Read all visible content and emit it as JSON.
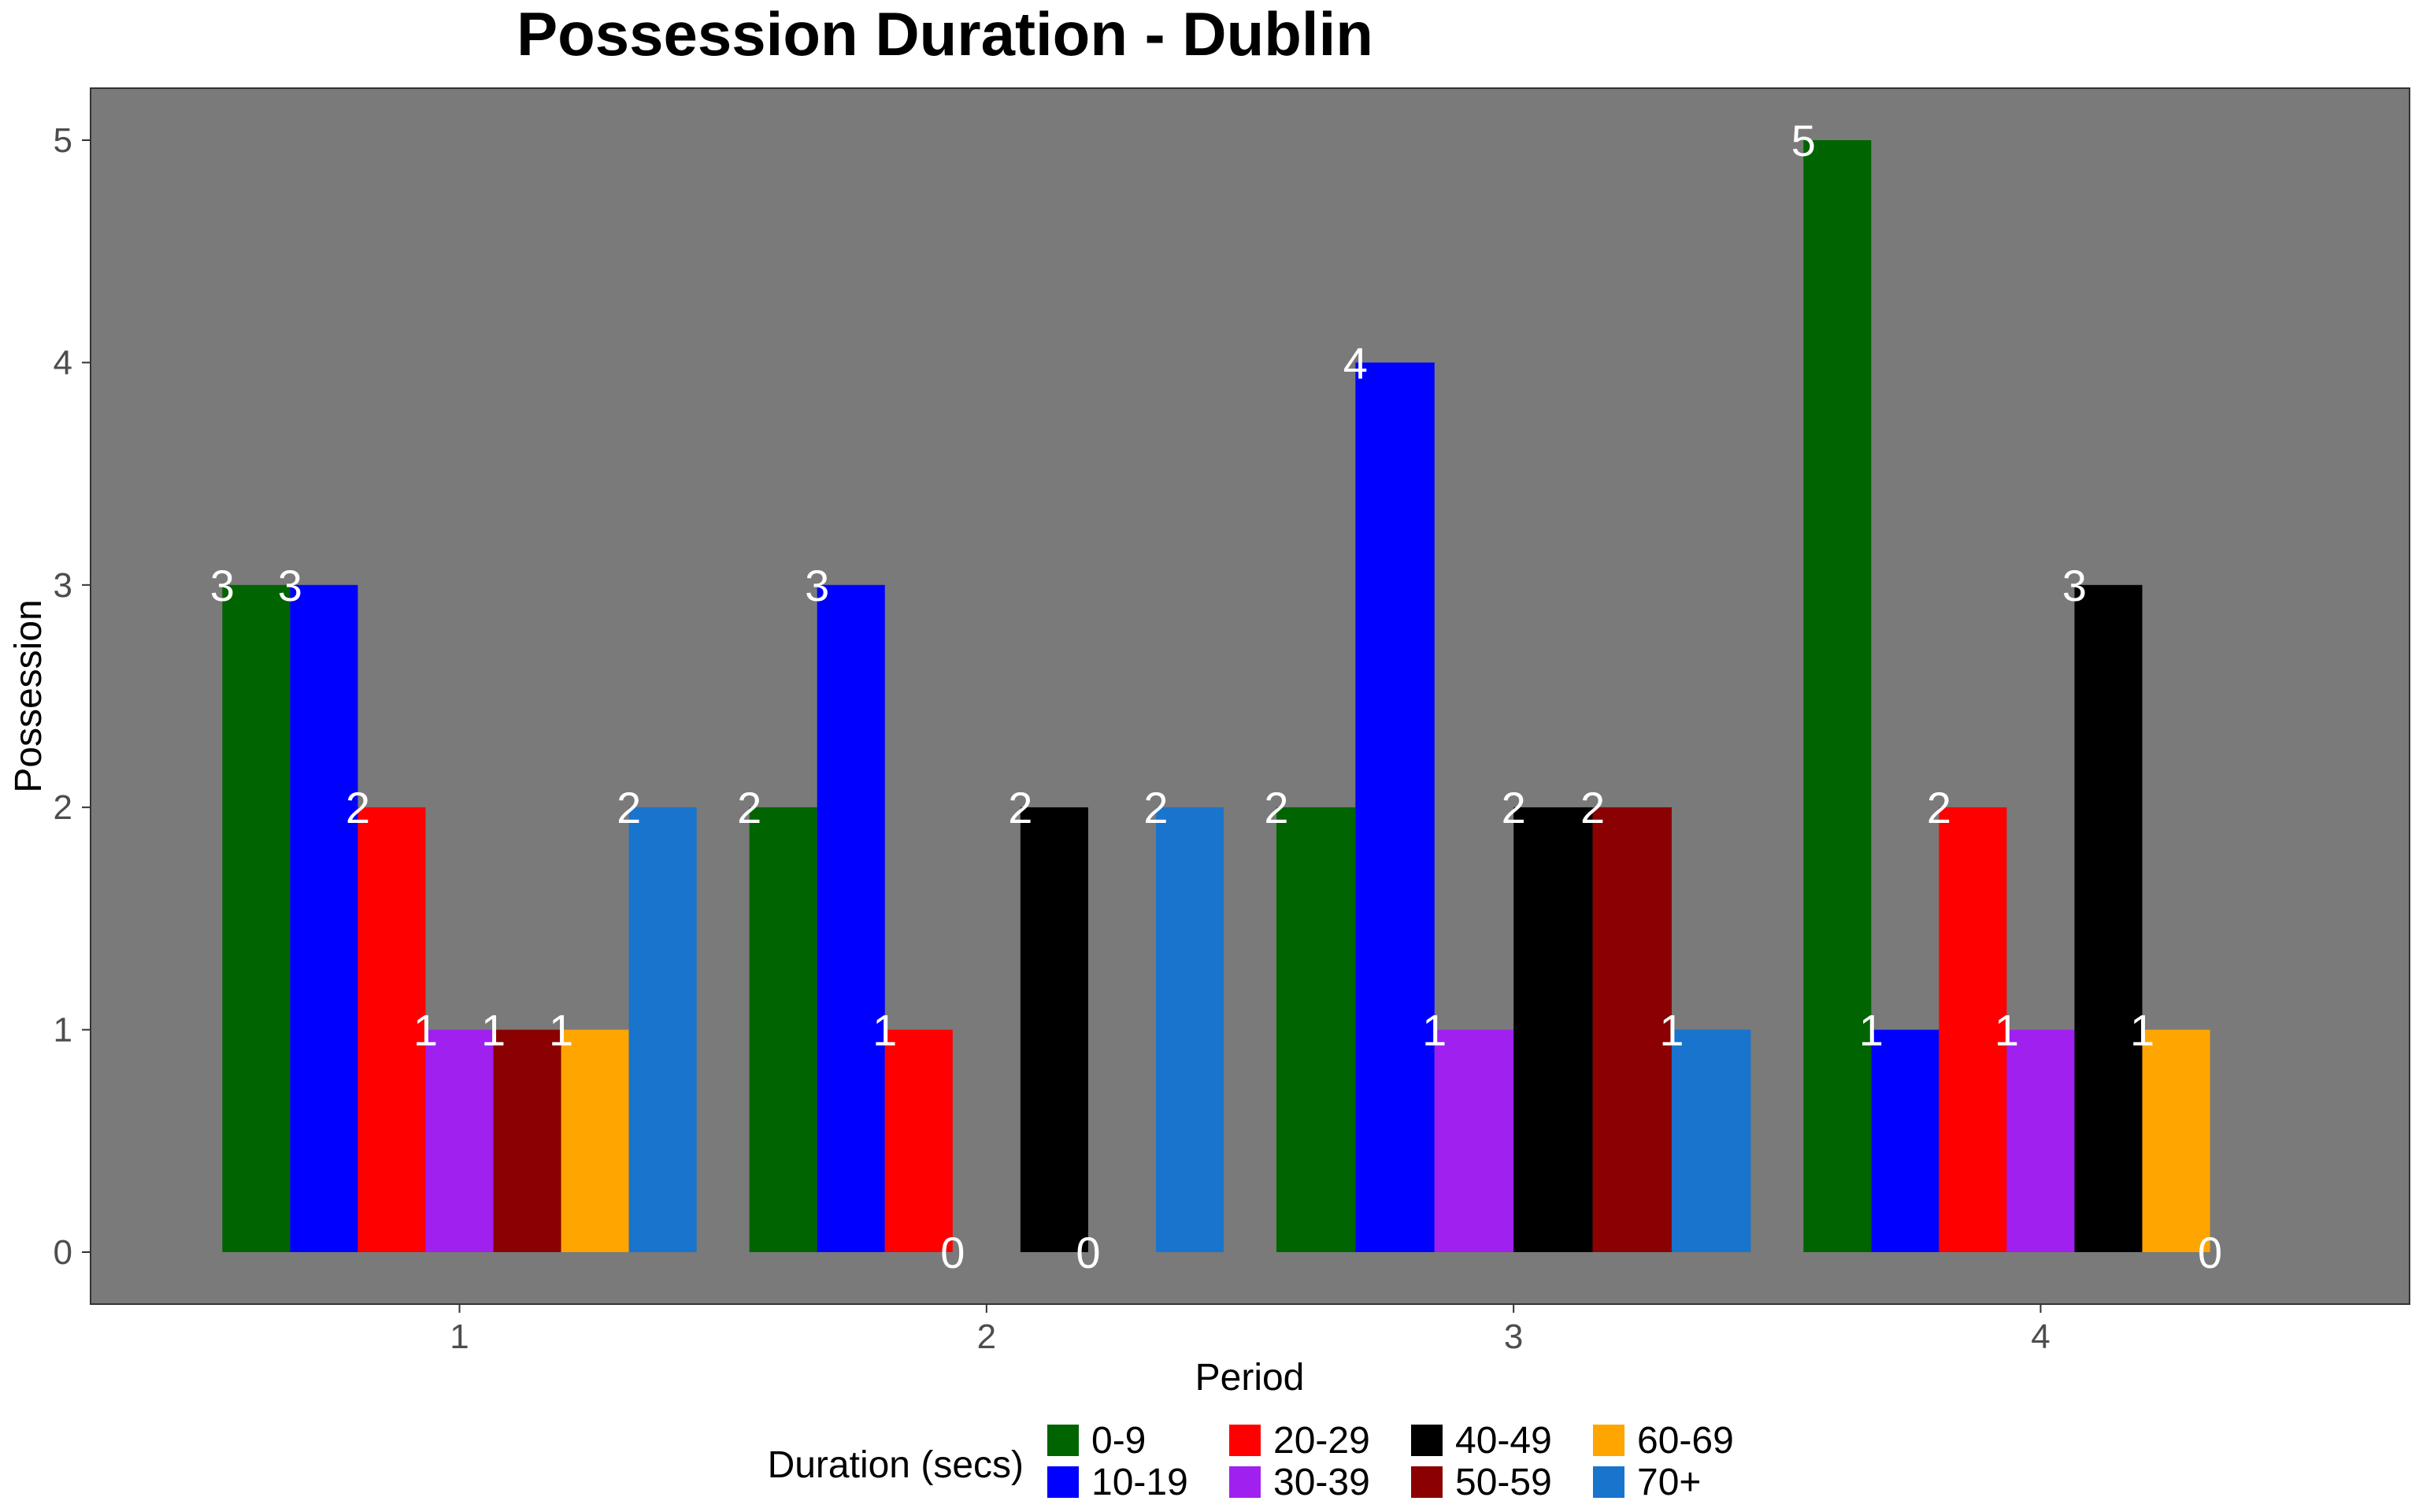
{
  "chart_data": {
    "type": "bar",
    "title": "Possession Duration - Dublin",
    "xlabel": "Period",
    "ylabel": "Possession",
    "categories": [
      "1",
      "2",
      "3",
      "4"
    ],
    "ylim": [
      0,
      5
    ],
    "yticks": [
      0,
      1,
      2,
      3,
      4,
      5
    ],
    "panel_background": "#7a7a7a",
    "grid": false,
    "legend": {
      "title": "Duration (secs)",
      "placement": "bottom"
    },
    "series": [
      {
        "name": "0-9",
        "color": "#006400",
        "values": [
          3,
          2,
          2,
          5
        ]
      },
      {
        "name": "10-19",
        "color": "#0000ff",
        "values": [
          3,
          3,
          4,
          1
        ]
      },
      {
        "name": "20-29",
        "color": "#ff0000",
        "values": [
          2,
          1,
          null,
          2
        ]
      },
      {
        "name": "30-39",
        "color": "#a020f0",
        "values": [
          1,
          0,
          1,
          1
        ]
      },
      {
        "name": "40-49",
        "color": "#000000",
        "values": [
          null,
          2,
          2,
          3
        ]
      },
      {
        "name": "50-59",
        "color": "#8b0000",
        "values": [
          1,
          0,
          2,
          null
        ]
      },
      {
        "name": "60-69",
        "color": "#ffa500",
        "values": [
          1,
          null,
          null,
          1
        ]
      },
      {
        "name": "70+",
        "color": "#1874cd",
        "values": [
          2,
          2,
          1,
          0
        ]
      }
    ]
  }
}
